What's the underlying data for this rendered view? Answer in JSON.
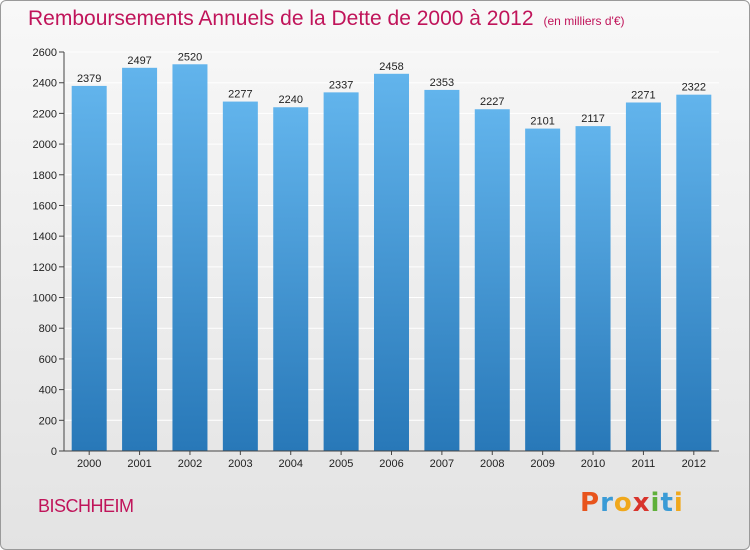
{
  "header": {
    "title": "Remboursements Annuels de la Dette de 2000 à 2012",
    "unit": "(en milliers d'€)"
  },
  "footer": {
    "city": "BISCHHEIM",
    "logo_text": "Proxiti"
  },
  "colors": {
    "title": "#c0145a",
    "bar_top": "#62b4ec",
    "bar_bottom": "#2878b8",
    "grid": "#ffffff"
  },
  "chart_data": {
    "type": "bar",
    "title": "Remboursements Annuels de la Dette de 2000 à 2012",
    "subtitle": "(en milliers d'€)",
    "xlabel": "",
    "ylabel": "",
    "categories": [
      "2000",
      "2001",
      "2002",
      "2003",
      "2004",
      "2005",
      "2006",
      "2007",
      "2008",
      "2009",
      "2010",
      "2011",
      "2012"
    ],
    "values": [
      2379,
      2497,
      2520,
      2277,
      2240,
      2337,
      2458,
      2353,
      2227,
      2101,
      2117,
      2271,
      2322
    ],
    "ylim": [
      0,
      2600
    ],
    "yticks": [
      0,
      200,
      400,
      600,
      800,
      1000,
      1200,
      1400,
      1600,
      1800,
      2000,
      2200,
      2400,
      2600
    ],
    "grid": true,
    "legend": "none"
  }
}
